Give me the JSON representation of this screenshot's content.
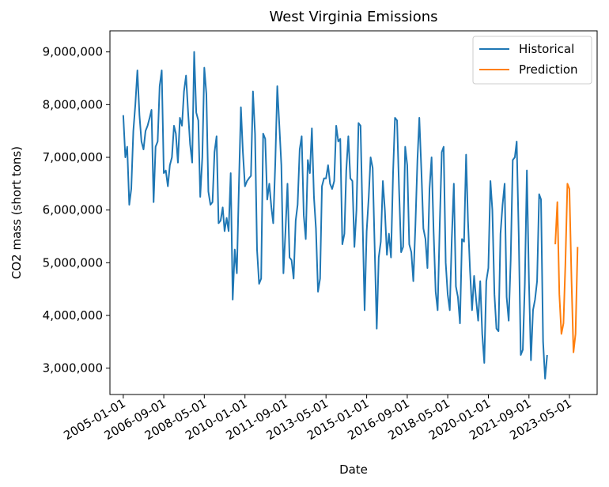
{
  "chart_data": {
    "type": "line",
    "title": "West Virginia Emissions",
    "xlabel": "Date",
    "ylabel": "CO2 mass (short tons)",
    "x_ticks": [
      "2005-01-01",
      "2006-09-01",
      "2008-05-01",
      "2010-01-01",
      "2011-09-01",
      "2013-05-01",
      "2015-01-01",
      "2016-09-01",
      "2018-05-01",
      "2020-01-01",
      "2021-09-01",
      "2023-05-01"
    ],
    "y_ticks": [
      3000000,
      4000000,
      5000000,
      6000000,
      7000000,
      8000000,
      9000000
    ],
    "y_tick_labels": [
      "3,000,000",
      "4,000,000",
      "5,000,000",
      "6,000,000",
      "7,000,000",
      "8,000,000",
      "9,000,000"
    ],
    "xlim": [
      "2004-06-15",
      "2024-06-20"
    ],
    "ylim": [
      2500000,
      9400000
    ],
    "grid": false,
    "legend_position": "top-right",
    "series": [
      {
        "name": "Historical",
        "color": "#1f77b4",
        "start": "2005-01",
        "values": [
          7800000,
          7000000,
          7200000,
          6100000,
          6400000,
          7500000,
          8000000,
          8650000,
          7800000,
          7300000,
          7150000,
          7500000,
          7600000,
          7750000,
          7900000,
          6150000,
          7200000,
          7300000,
          8350000,
          8650000,
          6700000,
          6750000,
          6450000,
          6850000,
          7000000,
          7600000,
          7450000,
          6900000,
          7750000,
          7600000,
          8250000,
          8550000,
          7850000,
          7250000,
          6900000,
          9000000,
          7850000,
          7700000,
          6250000,
          7000000,
          8700000,
          8200000,
          6350000,
          6100000,
          6150000,
          7100000,
          7400000,
          5750000,
          5800000,
          6050000,
          5600000,
          5850000,
          5600000,
          6700000,
          4300000,
          5250000,
          4800000,
          6400000,
          7950000,
          7100000,
          6450000,
          6550000,
          6600000,
          6650000,
          8250000,
          7450000,
          5250000,
          4600000,
          4700000,
          7450000,
          7350000,
          6200000,
          6500000,
          6050000,
          5750000,
          6900000,
          8350000,
          7600000,
          6850000,
          4800000,
          5600000,
          6500000,
          5100000,
          5050000,
          4700000,
          5800000,
          6100000,
          7150000,
          7400000,
          5900000,
          5450000,
          6950000,
          6700000,
          7550000,
          6250000,
          5650000,
          4450000,
          4700000,
          6450000,
          6600000,
          6600000,
          6850000,
          6500000,
          6400000,
          6550000,
          7600000,
          7300000,
          7350000,
          5350000,
          5550000,
          6750000,
          7400000,
          6600000,
          6550000,
          5300000,
          6000000,
          7650000,
          7600000,
          5800000,
          4100000,
          5600000,
          6250000,
          7000000,
          6800000,
          5300000,
          3750000,
          5100000,
          5400000,
          6550000,
          6000000,
          5150000,
          5550000,
          5100000,
          6700000,
          7750000,
          7700000,
          6400000,
          5200000,
          5300000,
          7200000,
          6850000,
          5350000,
          5200000,
          4650000,
          5700000,
          6950000,
          7750000,
          6750000,
          5650000,
          5450000,
          4900000,
          6400000,
          7000000,
          5600000,
          4450000,
          4100000,
          5700000,
          7100000,
          7200000,
          5000000,
          4400000,
          4100000,
          5450000,
          6500000,
          4550000,
          4350000,
          3850000,
          5450000,
          5400000,
          7050000,
          5800000,
          4850000,
          4100000,
          4750000,
          4300000,
          3900000,
          4650000,
          3650000,
          3100000,
          4650000,
          4900000,
          6550000,
          6000000,
          4400000,
          3750000,
          3700000,
          5550000,
          6100000,
          6500000,
          4350000,
          3900000,
          5050000,
          6950000,
          7000000,
          7300000,
          5500000,
          3250000,
          3350000,
          4600000,
          6750000,
          4650000,
          3150000,
          4100000,
          4300000,
          4650000,
          6300000,
          6200000,
          3500000,
          2800000,
          3250000
        ]
      },
      {
        "name": "Prediction",
        "color": "#ff7f0e",
        "start": "2022-10",
        "values": [
          5350000,
          6150000,
          4400000,
          3650000,
          3850000,
          4950000,
          6500000,
          6400000,
          4700000,
          3300000,
          3650000,
          5300000
        ]
      }
    ]
  }
}
